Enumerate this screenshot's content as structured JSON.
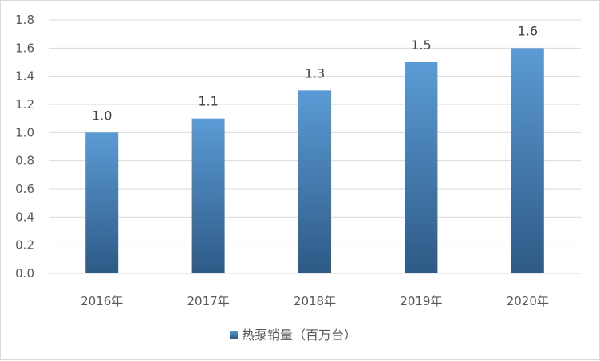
{
  "chart_data": {
    "type": "bar",
    "categories": [
      "2016年",
      "2017年",
      "2018年",
      "2019年",
      "2020年"
    ],
    "series": [
      {
        "name": "热泵销量（百万台）",
        "values": [
          1.0,
          1.1,
          1.3,
          1.5,
          1.6
        ]
      }
    ],
    "data_labels": [
      "1.0",
      "1.1",
      "1.3",
      "1.5",
      "1.6"
    ],
    "title": "",
    "xlabel": "",
    "ylabel": "",
    "ylim": [
      0,
      1.8
    ],
    "yticks": [
      "0.0",
      "0.2",
      "0.4",
      "0.6",
      "0.8",
      "1.0",
      "1.2",
      "1.4",
      "1.6",
      "1.8"
    ],
    "grid": true,
    "legend_position": "bottom",
    "colors": {
      "bar_top": "#5B9BD5",
      "bar_bottom": "#2E5A86",
      "grid": "#d9d9d9"
    }
  }
}
